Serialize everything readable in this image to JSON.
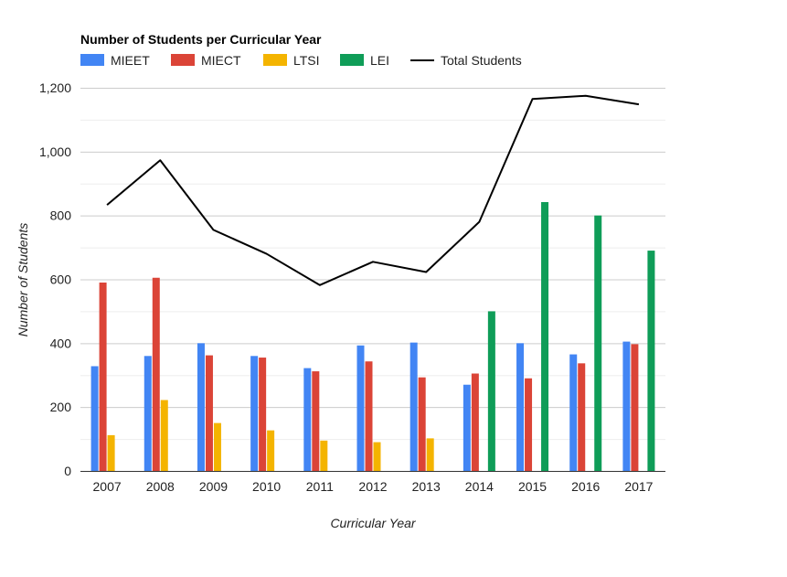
{
  "chart_data": {
    "type": "bar",
    "title": "Number of Students per Curricular Year",
    "xlabel": "Curricular Year",
    "ylabel": "Number of Students",
    "categories": [
      "2007",
      "2008",
      "2009",
      "2010",
      "2011",
      "2012",
      "2013",
      "2014",
      "2015",
      "2016",
      "2017"
    ],
    "ylim": [
      0,
      1200
    ],
    "yticks": [
      0,
      200,
      400,
      600,
      800,
      1000,
      1200
    ],
    "ytick_labels": [
      "0",
      "200",
      "400",
      "600",
      "800",
      "1,000",
      "1,200"
    ],
    "grid": true,
    "legend_position": "top-left",
    "series": [
      {
        "name": "MIEET",
        "type": "bar",
        "color": "#4285f4",
        "values": [
          328,
          360,
          400,
          360,
          322,
          393,
          402,
          270,
          400,
          365,
          405
        ]
      },
      {
        "name": "MIECT",
        "type": "bar",
        "color": "#db4437",
        "values": [
          590,
          605,
          362,
          355,
          312,
          343,
          293,
          305,
          290,
          337,
          397
        ]
      },
      {
        "name": "LTSI",
        "type": "bar",
        "color": "#f4b400",
        "values": [
          112,
          222,
          150,
          127,
          95,
          90,
          102,
          null,
          null,
          null,
          null
        ]
      },
      {
        "name": "LEI",
        "type": "bar",
        "color": "#0f9d58",
        "values": [
          null,
          null,
          null,
          null,
          null,
          null,
          null,
          500,
          842,
          800,
          690
        ]
      },
      {
        "name": "Total Students",
        "type": "line",
        "color": "#000000",
        "values": [
          833,
          973,
          755,
          680,
          582,
          655,
          623,
          780,
          1165,
          1175,
          1148
        ]
      }
    ]
  }
}
